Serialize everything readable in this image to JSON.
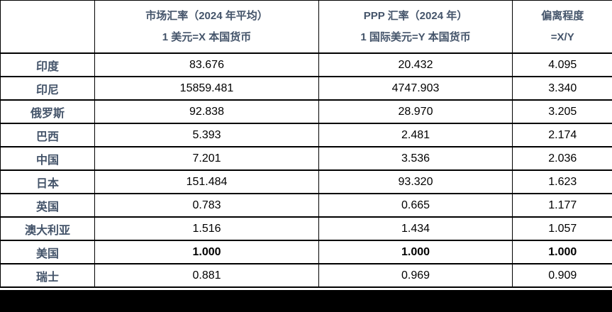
{
  "colors": {
    "accent_text": "#44546A",
    "body_text": "#000000",
    "border": "#000000",
    "bottom_bar": "#000000",
    "background": "#ffffff"
  },
  "table": {
    "header": {
      "country_label": "",
      "market": {
        "line1": "市场汇率（2024 年平均）",
        "line2": "1 美元=X 本国货币"
      },
      "ppp": {
        "line1": "PPP 汇率（2024 年）",
        "line2": "1 国际美元=Y 本国货币"
      },
      "deviation": {
        "line1": "偏离程度",
        "line2": "=X/Y"
      }
    },
    "rows": [
      {
        "country": "印度",
        "market": "83.676",
        "ppp": "20.432",
        "deviation": "4.095",
        "bold": false
      },
      {
        "country": "印尼",
        "market": "15859.481",
        "ppp": "4747.903",
        "deviation": "3.340",
        "bold": false
      },
      {
        "country": "俄罗斯",
        "market": "92.838",
        "ppp": "28.970",
        "deviation": "3.205",
        "bold": false
      },
      {
        "country": "巴西",
        "market": "5.393",
        "ppp": "2.481",
        "deviation": "2.174",
        "bold": false
      },
      {
        "country": "中国",
        "market": "7.201",
        "ppp": "3.536",
        "deviation": "2.036",
        "bold": false
      },
      {
        "country": "日本",
        "market": "151.484",
        "ppp": "93.320",
        "deviation": "1.623",
        "bold": false
      },
      {
        "country": "英国",
        "market": "0.783",
        "ppp": "0.665",
        "deviation": "1.177",
        "bold": false
      },
      {
        "country": "澳大利亚",
        "market": "1.516",
        "ppp": "1.434",
        "deviation": "1.057",
        "bold": false
      },
      {
        "country": "美国",
        "market": "1.000",
        "ppp": "1.000",
        "deviation": "1.000",
        "bold": true
      },
      {
        "country": "瑞士",
        "market": "0.881",
        "ppp": "0.969",
        "deviation": "0.909",
        "bold": false
      }
    ]
  }
}
